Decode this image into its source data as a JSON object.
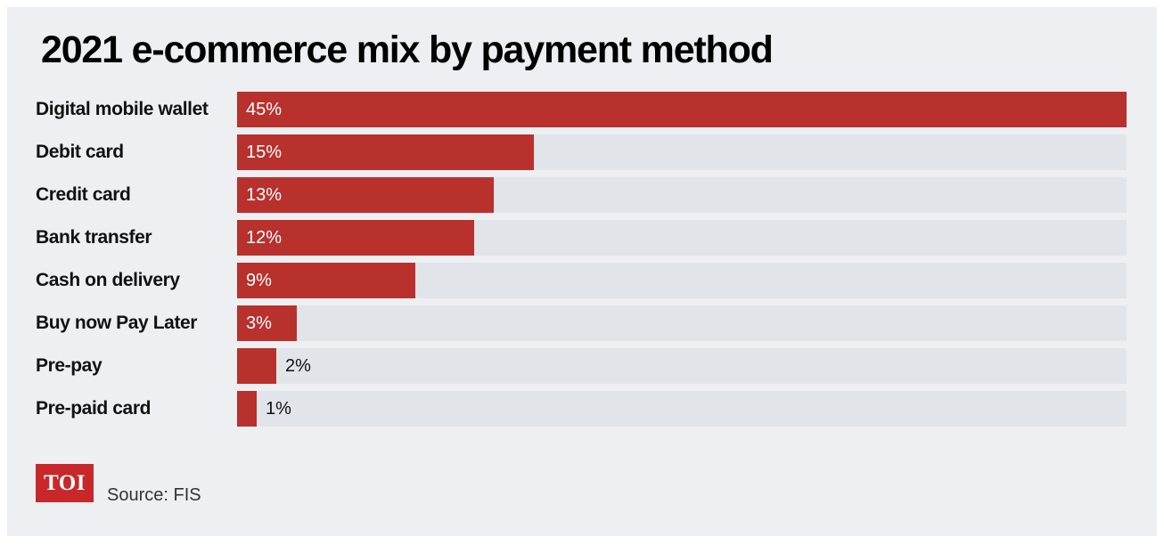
{
  "title": "2021 e-commerce mix by payment method",
  "source": "Source: FIS",
  "logo": "TOI",
  "colors": {
    "bar": "#b8312d",
    "track": "#e1e4e9",
    "background": "#edeff3",
    "logo_bg": "#c8282a"
  },
  "chart_data": {
    "type": "bar",
    "orientation": "horizontal",
    "categories": [
      "Digital mobile wallet",
      "Debit card",
      "Credit card",
      "Bank transfer",
      "Cash on delivery",
      "Buy now Pay Later",
      "Pre-pay",
      "Pre-paid card"
    ],
    "values": [
      45,
      15,
      13,
      12,
      9,
      3,
      2,
      1
    ],
    "value_labels": [
      "45%",
      "15%",
      "13%",
      "12%",
      "9%",
      "3%",
      "2%",
      "1%"
    ],
    "unit": "%",
    "xlim": [
      0,
      45
    ],
    "grid": false
  }
}
